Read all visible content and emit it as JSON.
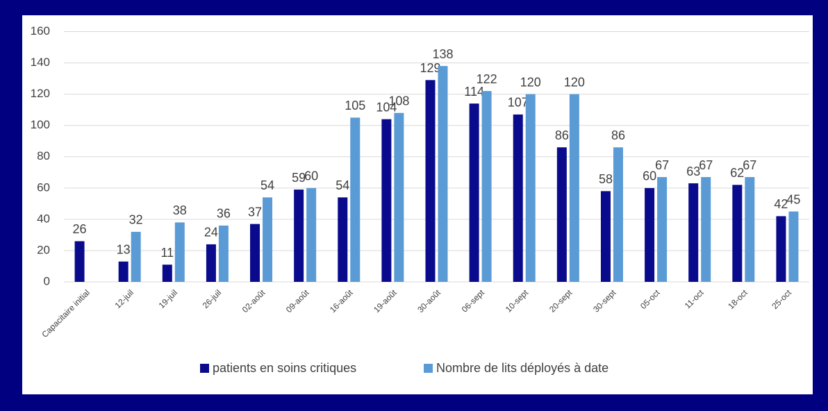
{
  "chart_data": {
    "type": "bar",
    "categories": [
      "Capacitaire initial",
      "12-juil",
      "19-juil",
      "26-juil",
      "02-août",
      "09-août",
      "16-août",
      "19-août",
      "30-août",
      "06-sept",
      "10-sept",
      "20-sept",
      "30-sept",
      "05-oct",
      "11-oct",
      "18-oct",
      "25-oct"
    ],
    "series": [
      {
        "name": "patients en soins critiques",
        "color": "#0a0a8c",
        "values": [
          26,
          13,
          11,
          24,
          37,
          59,
          54,
          104,
          129,
          114,
          107,
          86,
          58,
          60,
          63,
          62,
          42
        ]
      },
      {
        "name": "Nombre de lits déployés à date",
        "color": "#5b9bd5",
        "values": [
          null,
          32,
          38,
          36,
          54,
          60,
          105,
          108,
          138,
          122,
          120,
          120,
          86,
          67,
          67,
          67,
          45
        ]
      }
    ],
    "ylim": [
      0,
      160
    ],
    "yticks": [
      0,
      20,
      40,
      60,
      80,
      100,
      120,
      140,
      160
    ],
    "grid": true,
    "legend": "bottom"
  }
}
